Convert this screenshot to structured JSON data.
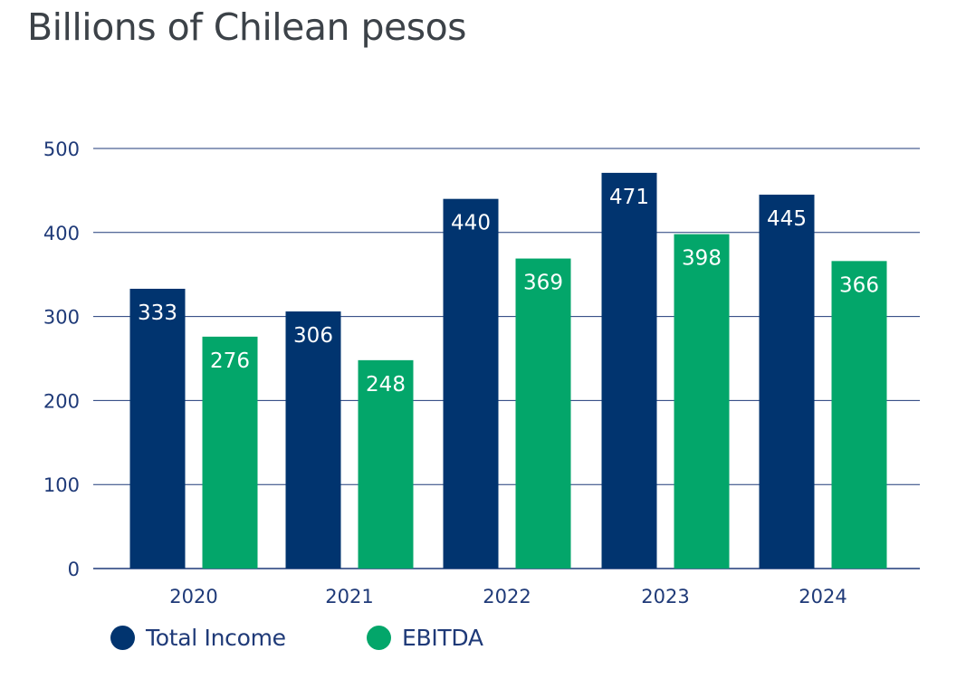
{
  "title": "Billions of Chilean pesos",
  "colors": {
    "total_income": "#01346f",
    "ebitda": "#03a66a",
    "axis_text": "#1f3a78",
    "gridline": "#1f3a78",
    "title": "#3c4248"
  },
  "legend": {
    "total_income": "Total Income",
    "ebitda": "EBITDA"
  },
  "chart_data": {
    "type": "bar",
    "title": "Billions of Chilean pesos",
    "categories": [
      "2020",
      "2021",
      "2022",
      "2023",
      "2024"
    ],
    "series": [
      {
        "name": "Total Income",
        "values": [
          333,
          306,
          440,
          471,
          445
        ]
      },
      {
        "name": "EBITDA",
        "values": [
          276,
          248,
          369,
          398,
          366
        ]
      }
    ],
    "y_ticks": [
      "0",
      "100",
      "200",
      "300",
      "400",
      "500"
    ],
    "ylim": [
      0,
      500
    ],
    "grid": true,
    "legend_position": "bottom-left",
    "data_labels": "inside-top"
  }
}
